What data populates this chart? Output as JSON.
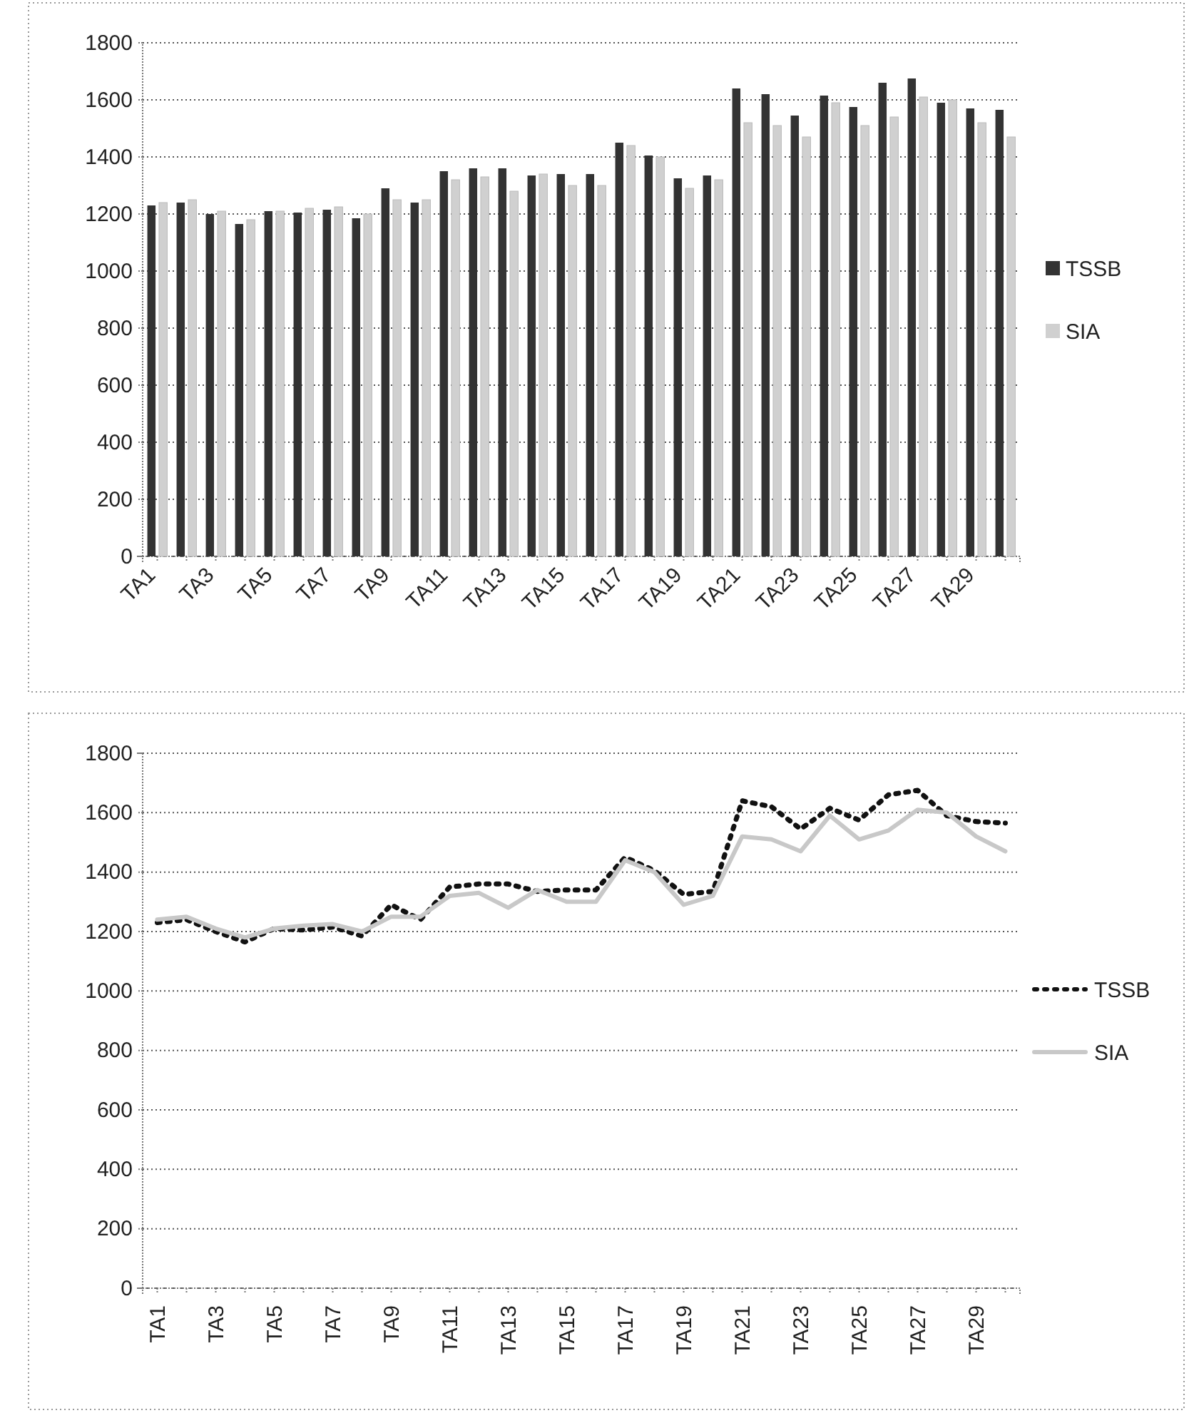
{
  "chart_data": [
    {
      "type": "bar",
      "categories": [
        "TA1",
        null,
        "TA3",
        null,
        "TA5",
        null,
        "TA7",
        null,
        "TA9",
        null,
        "TA11",
        null,
        "TA13",
        null,
        "TA15",
        null,
        "TA17",
        null,
        "TA19",
        null,
        "TA21",
        null,
        "TA23",
        null,
        "TA25",
        null,
        "TA27",
        null,
        "TA29",
        null
      ],
      "series": [
        {
          "name": "TSSB",
          "color": "#333333",
          "values": [
            1230,
            1240,
            1200,
            1165,
            1210,
            1205,
            1215,
            1185,
            1290,
            1240,
            1350,
            1360,
            1360,
            1335,
            1340,
            1340,
            1450,
            1405,
            1325,
            1335,
            1640,
            1620,
            1545,
            1615,
            1575,
            1660,
            1675,
            1590,
            1570,
            1565
          ]
        },
        {
          "name": "SIA",
          "color": "#d0d0d0",
          "values": [
            1240,
            1250,
            1210,
            1180,
            1210,
            1220,
            1225,
            1200,
            1250,
            1250,
            1320,
            1330,
            1280,
            1340,
            1300,
            1300,
            1440,
            1400,
            1290,
            1320,
            1520,
            1510,
            1470,
            1590,
            1510,
            1540,
            1610,
            1600,
            1520,
            1470
          ]
        }
      ],
      "ylim": [
        0,
        1800
      ],
      "yticks": [
        0,
        200,
        400,
        600,
        800,
        1000,
        1200,
        1400,
        1600,
        1800
      ],
      "grid": "y",
      "legend": "right"
    },
    {
      "type": "line",
      "categories": [
        "TA1",
        null,
        "TA3",
        null,
        "TA5",
        null,
        "TA7",
        null,
        "TA9",
        null,
        "TA11",
        null,
        "TA13",
        null,
        "TA15",
        null,
        "TA17",
        null,
        "TA19",
        null,
        "TA21",
        null,
        "TA23",
        null,
        "TA25",
        null,
        "TA27",
        null,
        "TA29",
        null
      ],
      "series": [
        {
          "name": "TSSB",
          "color": "#111111",
          "line_style": "dotted",
          "values": [
            1230,
            1240,
            1200,
            1165,
            1210,
            1205,
            1215,
            1185,
            1290,
            1240,
            1350,
            1360,
            1360,
            1335,
            1340,
            1340,
            1450,
            1405,
            1325,
            1335,
            1640,
            1620,
            1545,
            1615,
            1575,
            1660,
            1675,
            1590,
            1570,
            1565
          ]
        },
        {
          "name": "SIA",
          "color": "#c8c8c8",
          "line_style": "solid",
          "values": [
            1240,
            1250,
            1210,
            1180,
            1210,
            1220,
            1225,
            1200,
            1250,
            1250,
            1320,
            1330,
            1280,
            1340,
            1300,
            1300,
            1440,
            1400,
            1290,
            1320,
            1520,
            1510,
            1470,
            1590,
            1510,
            1540,
            1610,
            1600,
            1520,
            1470
          ]
        }
      ],
      "ylim": [
        0,
        1800
      ],
      "yticks": [
        0,
        200,
        400,
        600,
        800,
        1000,
        1200,
        1400,
        1600,
        1800
      ],
      "grid": "y",
      "legend": "right",
      "marker": "none"
    }
  ]
}
